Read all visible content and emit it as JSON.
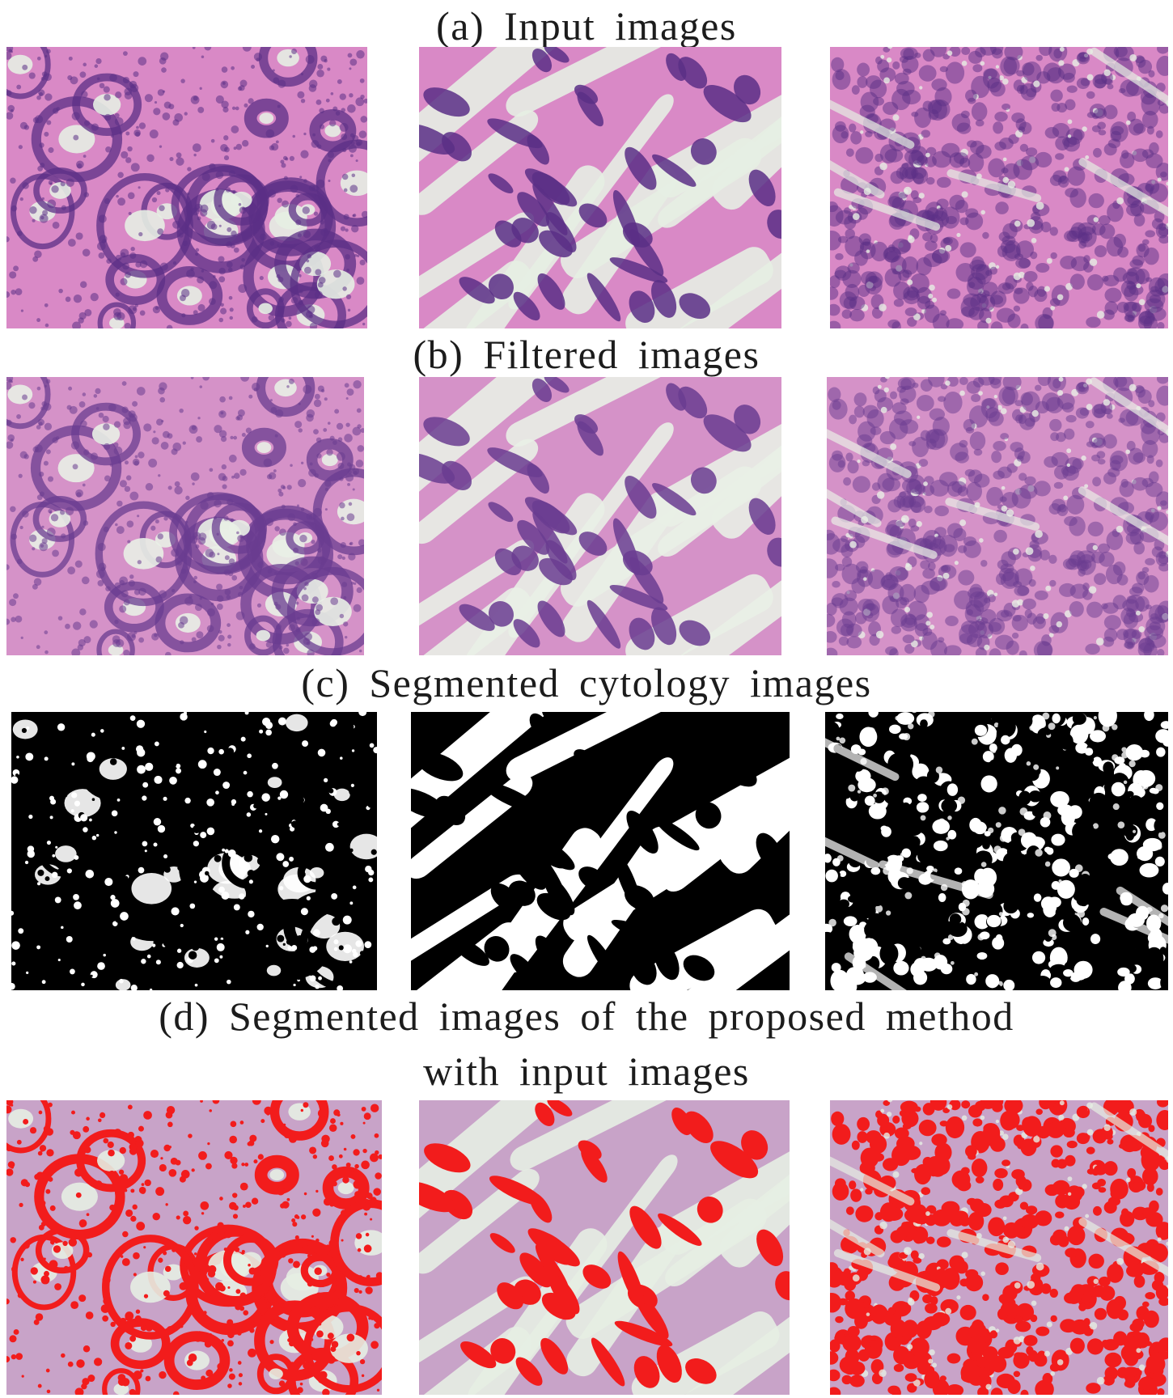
{
  "figure": {
    "captions": {
      "a": "(a)  Input images",
      "b": "(b) Filtered  images",
      "c": "(c) Segmented  cytology  images",
      "d_line1": "(d) Segmented  images  of the  proposed  method",
      "d_line2": "with  input images"
    },
    "colors": {
      "tissue_bg": "#d989c6",
      "nuclei": "#5b2f86",
      "lumen": "#e6eee3",
      "segment_black": "#000000",
      "segment_white": "#ffffff",
      "overlay_red": "#f21c1c",
      "overlay_bg": "#c8a3c8"
    },
    "rows": [
      {
        "id": "input",
        "tiles": [
          "glandular-tissue",
          "stromal-tissue",
          "dense-cellular-tissue"
        ]
      },
      {
        "id": "filtered",
        "tiles": [
          "glandular-tissue",
          "stromal-tissue",
          "dense-cellular-tissue"
        ]
      },
      {
        "id": "segmented",
        "tiles": [
          "glandular-tissue",
          "stromal-tissue",
          "dense-cellular-tissue"
        ]
      },
      {
        "id": "overlay",
        "tiles": [
          "glandular-tissue",
          "stromal-tissue",
          "dense-cellular-tissue"
        ]
      }
    ]
  }
}
